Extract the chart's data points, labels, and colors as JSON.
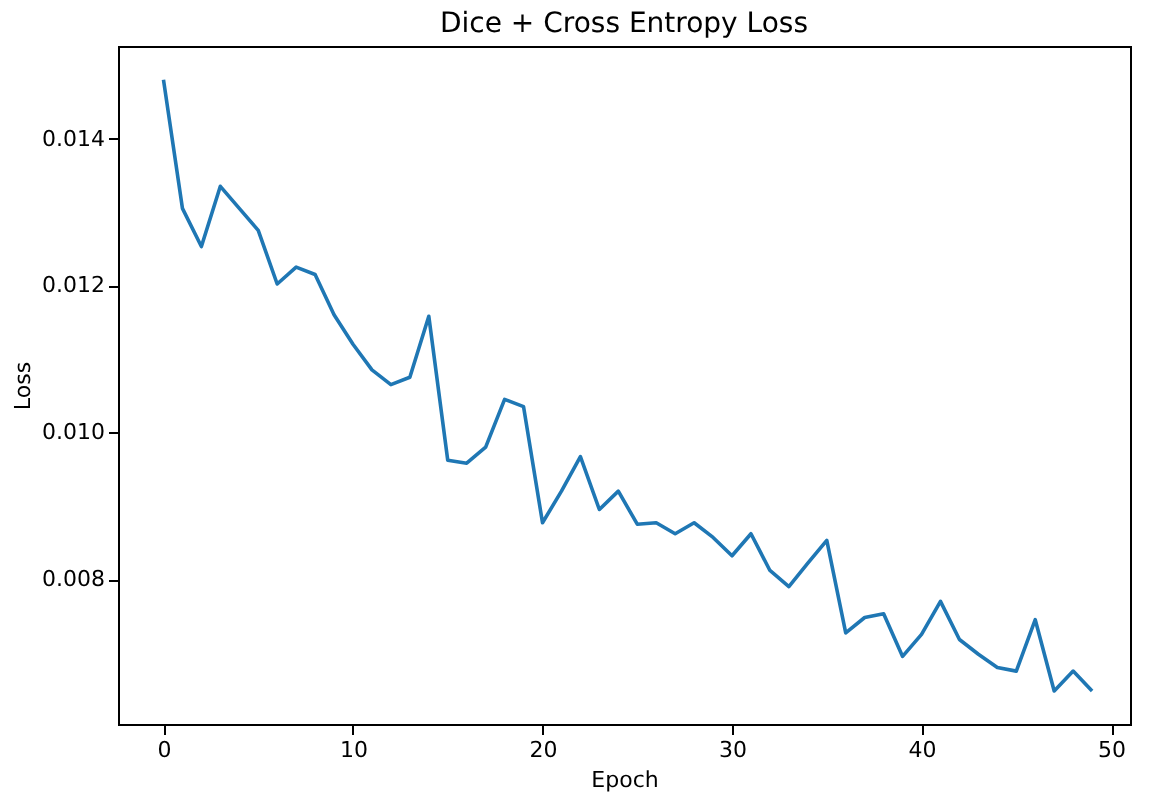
{
  "chart_data": {
    "type": "line",
    "title": "Dice + Cross Entropy Loss",
    "xlabel": "Epoch",
    "ylabel": "Loss",
    "x": [
      0,
      1,
      2,
      3,
      4,
      5,
      6,
      7,
      8,
      9,
      10,
      11,
      12,
      13,
      14,
      15,
      16,
      17,
      18,
      19,
      20,
      21,
      22,
      23,
      24,
      25,
      26,
      27,
      28,
      29,
      30,
      31,
      32,
      33,
      34,
      35,
      36,
      37,
      38,
      39,
      40,
      41,
      42,
      43,
      44,
      45,
      46,
      47,
      48,
      49
    ],
    "series": [
      {
        "color": "#1f77b4",
        "values": [
          0.0148,
          0.01305,
          0.01253,
          0.01335,
          0.01305,
          0.01275,
          0.01202,
          0.01225,
          0.01215,
          0.0116,
          0.0112,
          0.01085,
          0.01065,
          0.01075,
          0.01158,
          0.00962,
          0.00958,
          0.0098,
          0.01045,
          0.01035,
          0.00877,
          0.0092,
          0.00967,
          0.00895,
          0.0092,
          0.00875,
          0.00877,
          0.00862,
          0.00877,
          0.00857,
          0.00832,
          0.00862,
          0.00812,
          0.0079,
          0.00822,
          0.00853,
          0.00727,
          0.00748,
          0.00753,
          0.00695,
          0.00725,
          0.0077,
          0.00718,
          0.00698,
          0.0068,
          0.00675,
          0.00745,
          0.00648,
          0.00675,
          0.00648
        ]
      }
    ],
    "xlim": [
      -2.4,
      51
    ],
    "ylim": [
      0.00603,
      0.01526
    ],
    "xticks": [
      0,
      10,
      20,
      30,
      40,
      50
    ],
    "yticks": [
      {
        "value": 0.008,
        "label": "0.008"
      },
      {
        "value": 0.01,
        "label": "0.010"
      },
      {
        "value": 0.012,
        "label": "0.012"
      },
      {
        "value": 0.014,
        "label": "0.014"
      }
    ],
    "grid": false,
    "legend": false,
    "marker": "none",
    "line_style": "solid"
  }
}
